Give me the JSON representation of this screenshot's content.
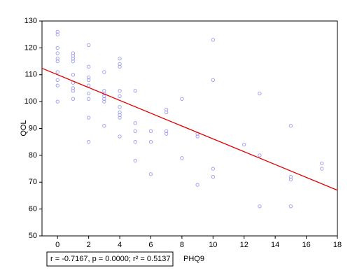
{
  "chart_data": {
    "type": "scatter",
    "x_label": "PHQ9",
    "y_label": "QOL",
    "annotation": "r = -0.7167, p = 0.0000; r² = 0.5137",
    "xlim": [
      -1,
      18
    ],
    "ylim": [
      50,
      130
    ],
    "xticks": [
      0,
      2,
      4,
      6,
      8,
      10,
      12,
      14,
      16,
      18
    ],
    "yticks": [
      50,
      60,
      70,
      80,
      90,
      100,
      110,
      120,
      130
    ],
    "grid": false,
    "series": [
      {
        "color": "#9a9af0",
        "x": [
          0,
          0,
          0,
          0,
          0,
          0,
          0,
          0,
          0,
          0,
          1,
          1,
          1,
          1,
          1,
          1,
          1,
          1,
          1,
          2,
          2,
          2,
          2,
          2,
          2,
          2,
          2,
          2,
          3,
          3,
          3,
          3,
          3,
          3,
          3,
          4,
          4,
          4,
          4,
          4,
          4,
          4,
          4,
          4,
          4,
          5,
          5,
          5,
          5,
          5,
          6,
          6,
          6,
          7,
          7,
          7,
          7,
          8,
          8,
          9,
          9,
          9,
          10,
          10,
          10,
          10,
          12,
          13,
          13,
          13,
          15,
          15,
          15,
          15,
          17,
          17
        ],
        "values": [
          126,
          125,
          120,
          118,
          116,
          115,
          111,
          108,
          106,
          100,
          118,
          117,
          116,
          115,
          110,
          107,
          105,
          104,
          101,
          121,
          113,
          109,
          108,
          106,
          103,
          101,
          94,
          85,
          111,
          104,
          103,
          102,
          101,
          100,
          91,
          116,
          114,
          113,
          104,
          102,
          98,
          96,
          95,
          94,
          87,
          104,
          92,
          89,
          85,
          78,
          89,
          85,
          73,
          97,
          96,
          89,
          88,
          101,
          79,
          88,
          87,
          69,
          123,
          108,
          75,
          72,
          84,
          103,
          80,
          61,
          91,
          72,
          71,
          61,
          77,
          75
        ]
      }
    ],
    "fit_line": {
      "color": "#e00000",
      "x": [
        -1,
        18
      ],
      "values": [
        112.4,
        67.0
      ]
    }
  }
}
